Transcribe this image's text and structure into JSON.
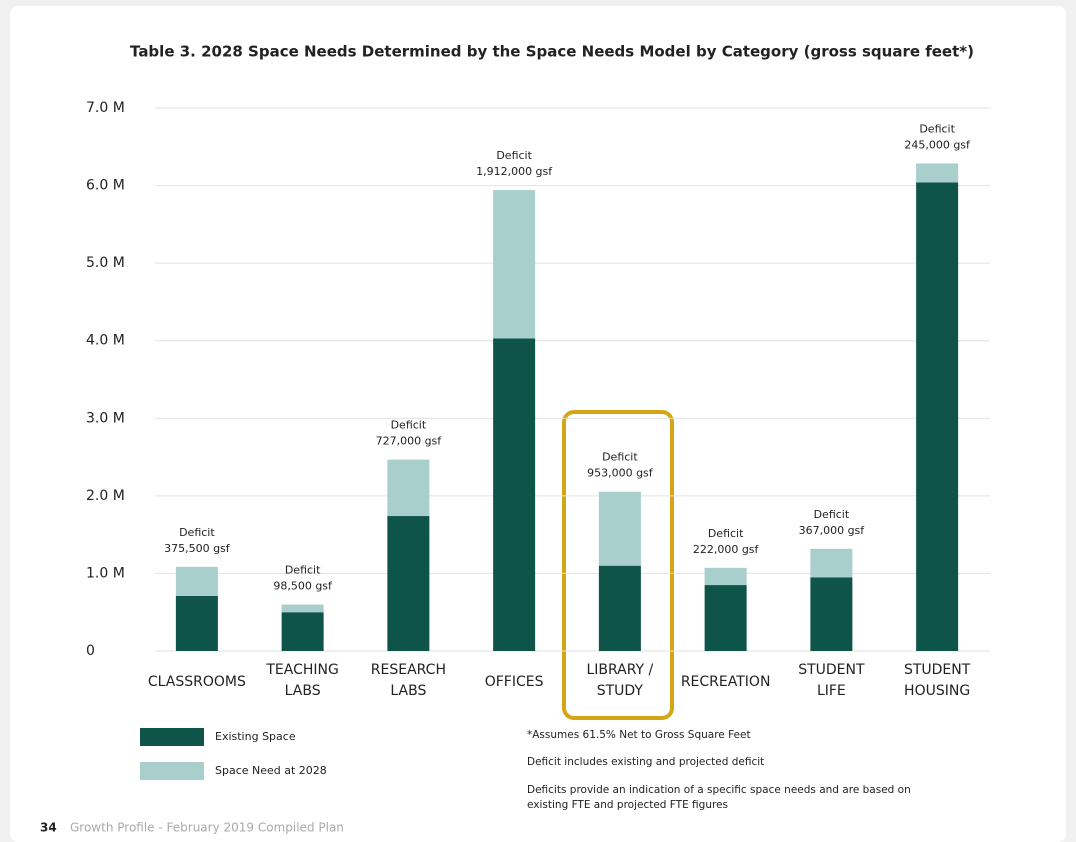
{
  "chart_data": {
    "type": "stacked_bar",
    "title": "Table 3. 2028 Space Needs Determined by the Space Needs Model by Category (gross square feet*)",
    "categories": [
      "CLASSROOMS",
      "TEACHING\nLABS",
      "RESEARCH\nLABS",
      "OFFICES",
      "LIBRARY /\nSTUDY",
      "RECREATION",
      "STUDENT\nLIFE",
      "STUDENT\nHOUSING"
    ],
    "series": [
      {
        "name": "Existing Space",
        "color": "#0f5448",
        "values": [
          710000,
          500000,
          1740000,
          4030000,
          1100000,
          850000,
          950000,
          6040000
        ]
      },
      {
        "name": "Space Need at 2028",
        "color": "#a8cfcc",
        "values": [
          375500,
          98500,
          727000,
          1912000,
          953000,
          222000,
          367000,
          245000
        ],
        "value_labels": [
          "375,500 gsf",
          "98,500 gsf",
          "727,000 gsf",
          "1,912,000 gsf",
          "953,000 gsf",
          "222,000 gsf",
          "367,000 gsf",
          "245,000 gsf"
        ]
      }
    ],
    "deficit_label": "Deficit",
    "ylim": [
      0,
      7000000
    ],
    "yticks": [
      0,
      {
        "value": 1000000,
        "label": "1.0 M"
      },
      {
        "value": 2000000,
        "label": "2.0 M"
      },
      {
        "value": 3000000,
        "label": "3.0 M"
      },
      {
        "value": 4000000,
        "label": "4.0 M"
      },
      {
        "value": 5000000,
        "label": "5.0 M"
      },
      {
        "value": 6000000,
        "label": "6.0 M"
      },
      {
        "value": 7000000,
        "label": "7.0 M"
      }
    ],
    "grid": true,
    "notes": [
      "*Assumes 61.5% Net to Gross Square Feet",
      "Deficit includes existing and projected deficit",
      "Deficits provide an indication of a specific space needs and are based on\nexisting FTE and projected FTE figures"
    ]
  },
  "footer": {
    "page_number": "34",
    "text": "Growth Profile - February 2019 Compiled Plan"
  }
}
